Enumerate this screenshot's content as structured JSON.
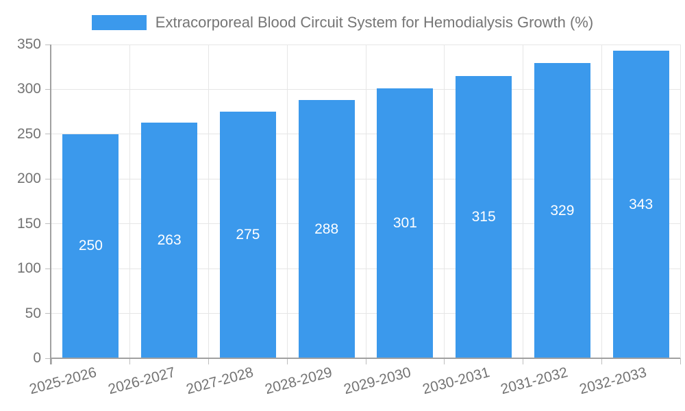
{
  "legend": {
    "label": "Extracorporeal Blood Circuit System for Hemodialysis Growth (%)"
  },
  "colors": {
    "bar": "#3B99EC",
    "bar_label": "#FFFFFF",
    "axis_line": "#A0A0A0",
    "tick": "#BDBDBD",
    "grid": "#E6E6E6",
    "axis_text": "#737373",
    "legend_text": "#757575",
    "background": "#FFFFFF"
  },
  "chart_data": {
    "type": "bar",
    "title": "",
    "legend_entries": [
      "Extracorporeal Blood Circuit System for Hemodialysis Growth (%)"
    ],
    "legend_position": "top",
    "categories": [
      "2025-2026",
      "2026-2027",
      "2027-2028",
      "2028-2029",
      "2029-2030",
      "2030-2031",
      "2031-2032",
      "2032-2033"
    ],
    "values": [
      250,
      263,
      275,
      288,
      301,
      315,
      329,
      343
    ],
    "xlabel": "",
    "ylabel": "",
    "ylim": [
      0,
      350
    ],
    "yticks": [
      0,
      50,
      100,
      150,
      200,
      250,
      300,
      350
    ],
    "grid": true,
    "value_labels": "inside-center",
    "xtick_rotation_deg": -15
  }
}
